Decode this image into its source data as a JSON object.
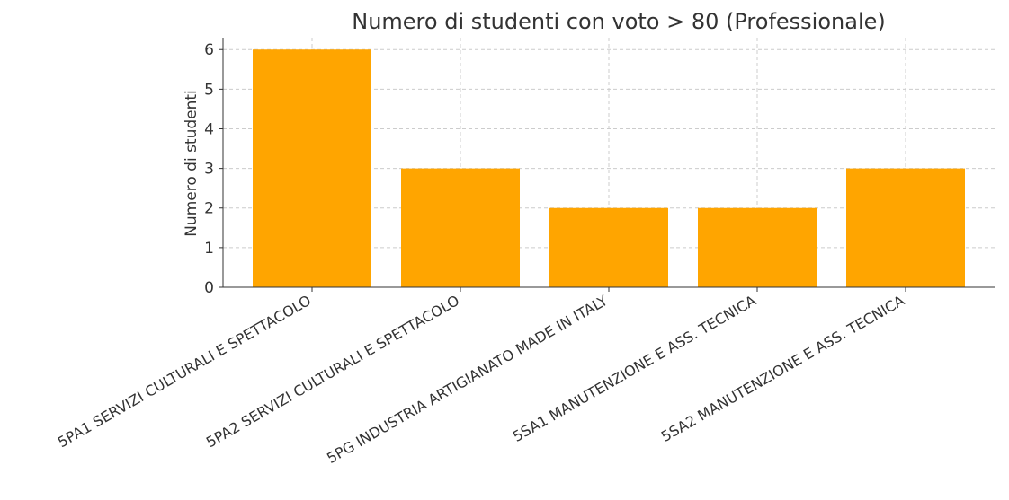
{
  "chart_data": {
    "type": "bar",
    "title": "Numero di studenti con voto > 80 (Professionale)",
    "y_label": "Numero di studenti",
    "categories": [
      "5PA1 SERVIZI CULTURALI E SPETTACOLO",
      "5PA2 SERVIZI CULTURALI E SPETTACOLO",
      "5PG INDUSTRIA ARTIGIANATO MADE IN ITALY",
      "5SA1 MANUTENZIONE E ASS. TECNICA",
      "5SA2 MANUTENZIONE E ASS. TECNICA"
    ],
    "values": [
      6,
      3,
      2,
      2,
      3
    ],
    "color": "#ffa500",
    "ylim": [
      0,
      6.3
    ],
    "yticks": [
      0,
      1,
      2,
      3,
      4,
      5,
      6
    ],
    "grid": true
  }
}
